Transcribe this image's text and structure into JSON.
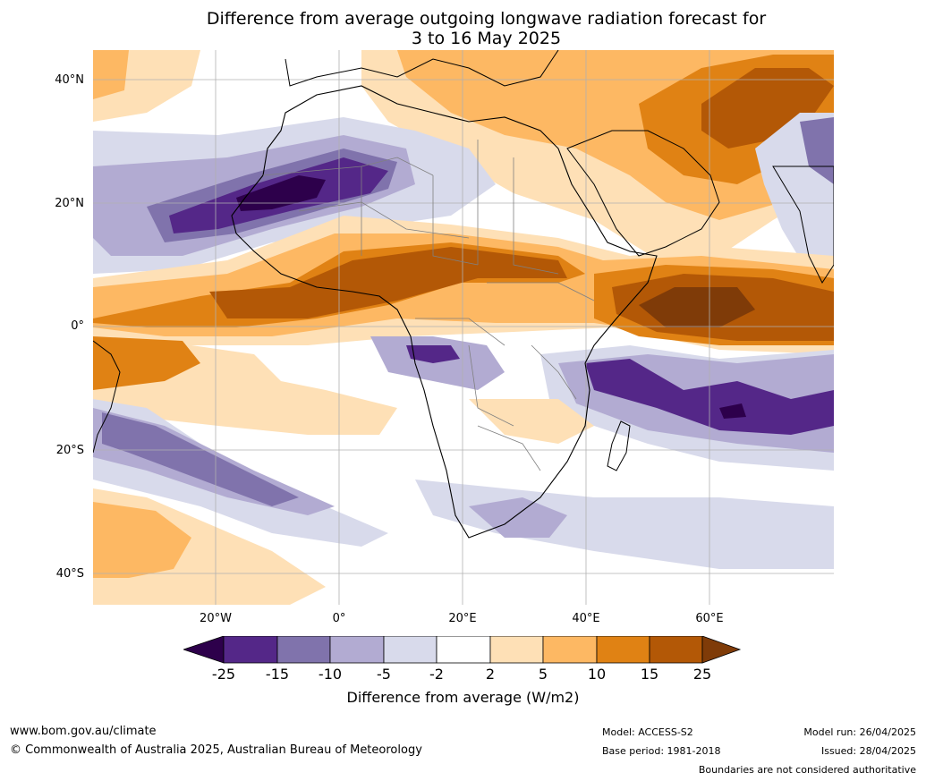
{
  "title": {
    "line1": "Difference from average outgoing longwave radiation forecast for",
    "line2": "3 to 16 May 2025"
  },
  "map": {
    "region": "Africa and surrounding oceans",
    "lat_labels": [
      "40°N",
      "20°N",
      "0°",
      "20°S",
      "40°S"
    ],
    "lon_labels": [
      "20°W",
      "0°",
      "20°E",
      "40°E",
      "60°E"
    ]
  },
  "colorbar": {
    "ticks": [
      "-25",
      "-15",
      "-10",
      "-5",
      "-2",
      "2",
      "5",
      "10",
      "15",
      "25"
    ],
    "colors": [
      "#2d004b",
      "#542788",
      "#8073ac",
      "#b2abd2",
      "#d8daeb",
      "#ffffff",
      "#fee0b6",
      "#fdb863",
      "#e08214",
      "#b35806",
      "#7f3b08"
    ],
    "label": "Difference from average (W/m2)"
  },
  "footer": {
    "website": "www.bom.gov.au/climate",
    "copyright": "© Commonwealth of Australia 2025, Australian Bureau of Meteorology",
    "model": "Model: ACCESS-S2",
    "base_period": "Base period: 1981-2018",
    "model_run": "Model run: 26/04/2025",
    "issued": "Issued: 28/04/2025",
    "disclaimer": "Boundaries are not considered authoritative"
  }
}
